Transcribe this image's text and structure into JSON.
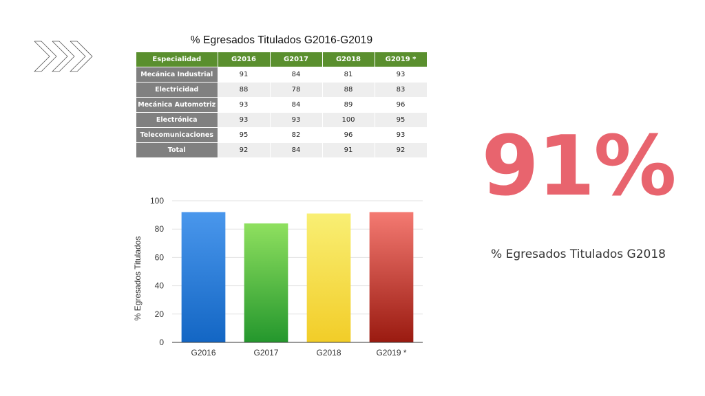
{
  "table": {
    "title": "% Egresados Titulados G2016-G2019",
    "headers": [
      "Especialidad",
      "G2016",
      "G2017",
      "G2018",
      "G2019 *"
    ],
    "rows": [
      {
        "label": "Mecánica Industrial",
        "values": [
          "91",
          "84",
          "81",
          "93"
        ]
      },
      {
        "label": "Electricidad",
        "values": [
          "88",
          "78",
          "88",
          "83"
        ]
      },
      {
        "label": "Mecánica Automotriz",
        "values": [
          "93",
          "84",
          "89",
          "96"
        ]
      },
      {
        "label": "Electrónica",
        "values": [
          "93",
          "93",
          "100",
          "95"
        ]
      },
      {
        "label": "Telecomunicaciones",
        "values": [
          "95",
          "82",
          "96",
          "93"
        ]
      },
      {
        "label": "Total",
        "values": [
          "92",
          "84",
          "91",
          "92"
        ]
      }
    ]
  },
  "chart_data": {
    "type": "bar",
    "categories": [
      "G2016",
      "G2017",
      "G2018",
      "G2019 *"
    ],
    "values": [
      92,
      84,
      91,
      92
    ],
    "ylabel": "% Egresados Titulados",
    "xlabel": "",
    "ylim": [
      0,
      100
    ],
    "yticks": [
      0,
      20,
      40,
      60,
      80,
      100
    ],
    "grid": true,
    "colors": [
      {
        "top": "#4a97ec",
        "bottom": "#1366c4"
      },
      {
        "top": "#8fe05f",
        "bottom": "#24972d"
      },
      {
        "top": "#f9ef74",
        "bottom": "#f2cd28"
      },
      {
        "top": "#f47a72",
        "bottom": "#9a1a10"
      }
    ]
  },
  "stat": {
    "value": "91%",
    "caption": "% Egresados Titulados G2018",
    "color": "#e8646e"
  },
  "decor": {
    "chevron_icon": "chevron-right-icon",
    "chevron_count": 3
  }
}
